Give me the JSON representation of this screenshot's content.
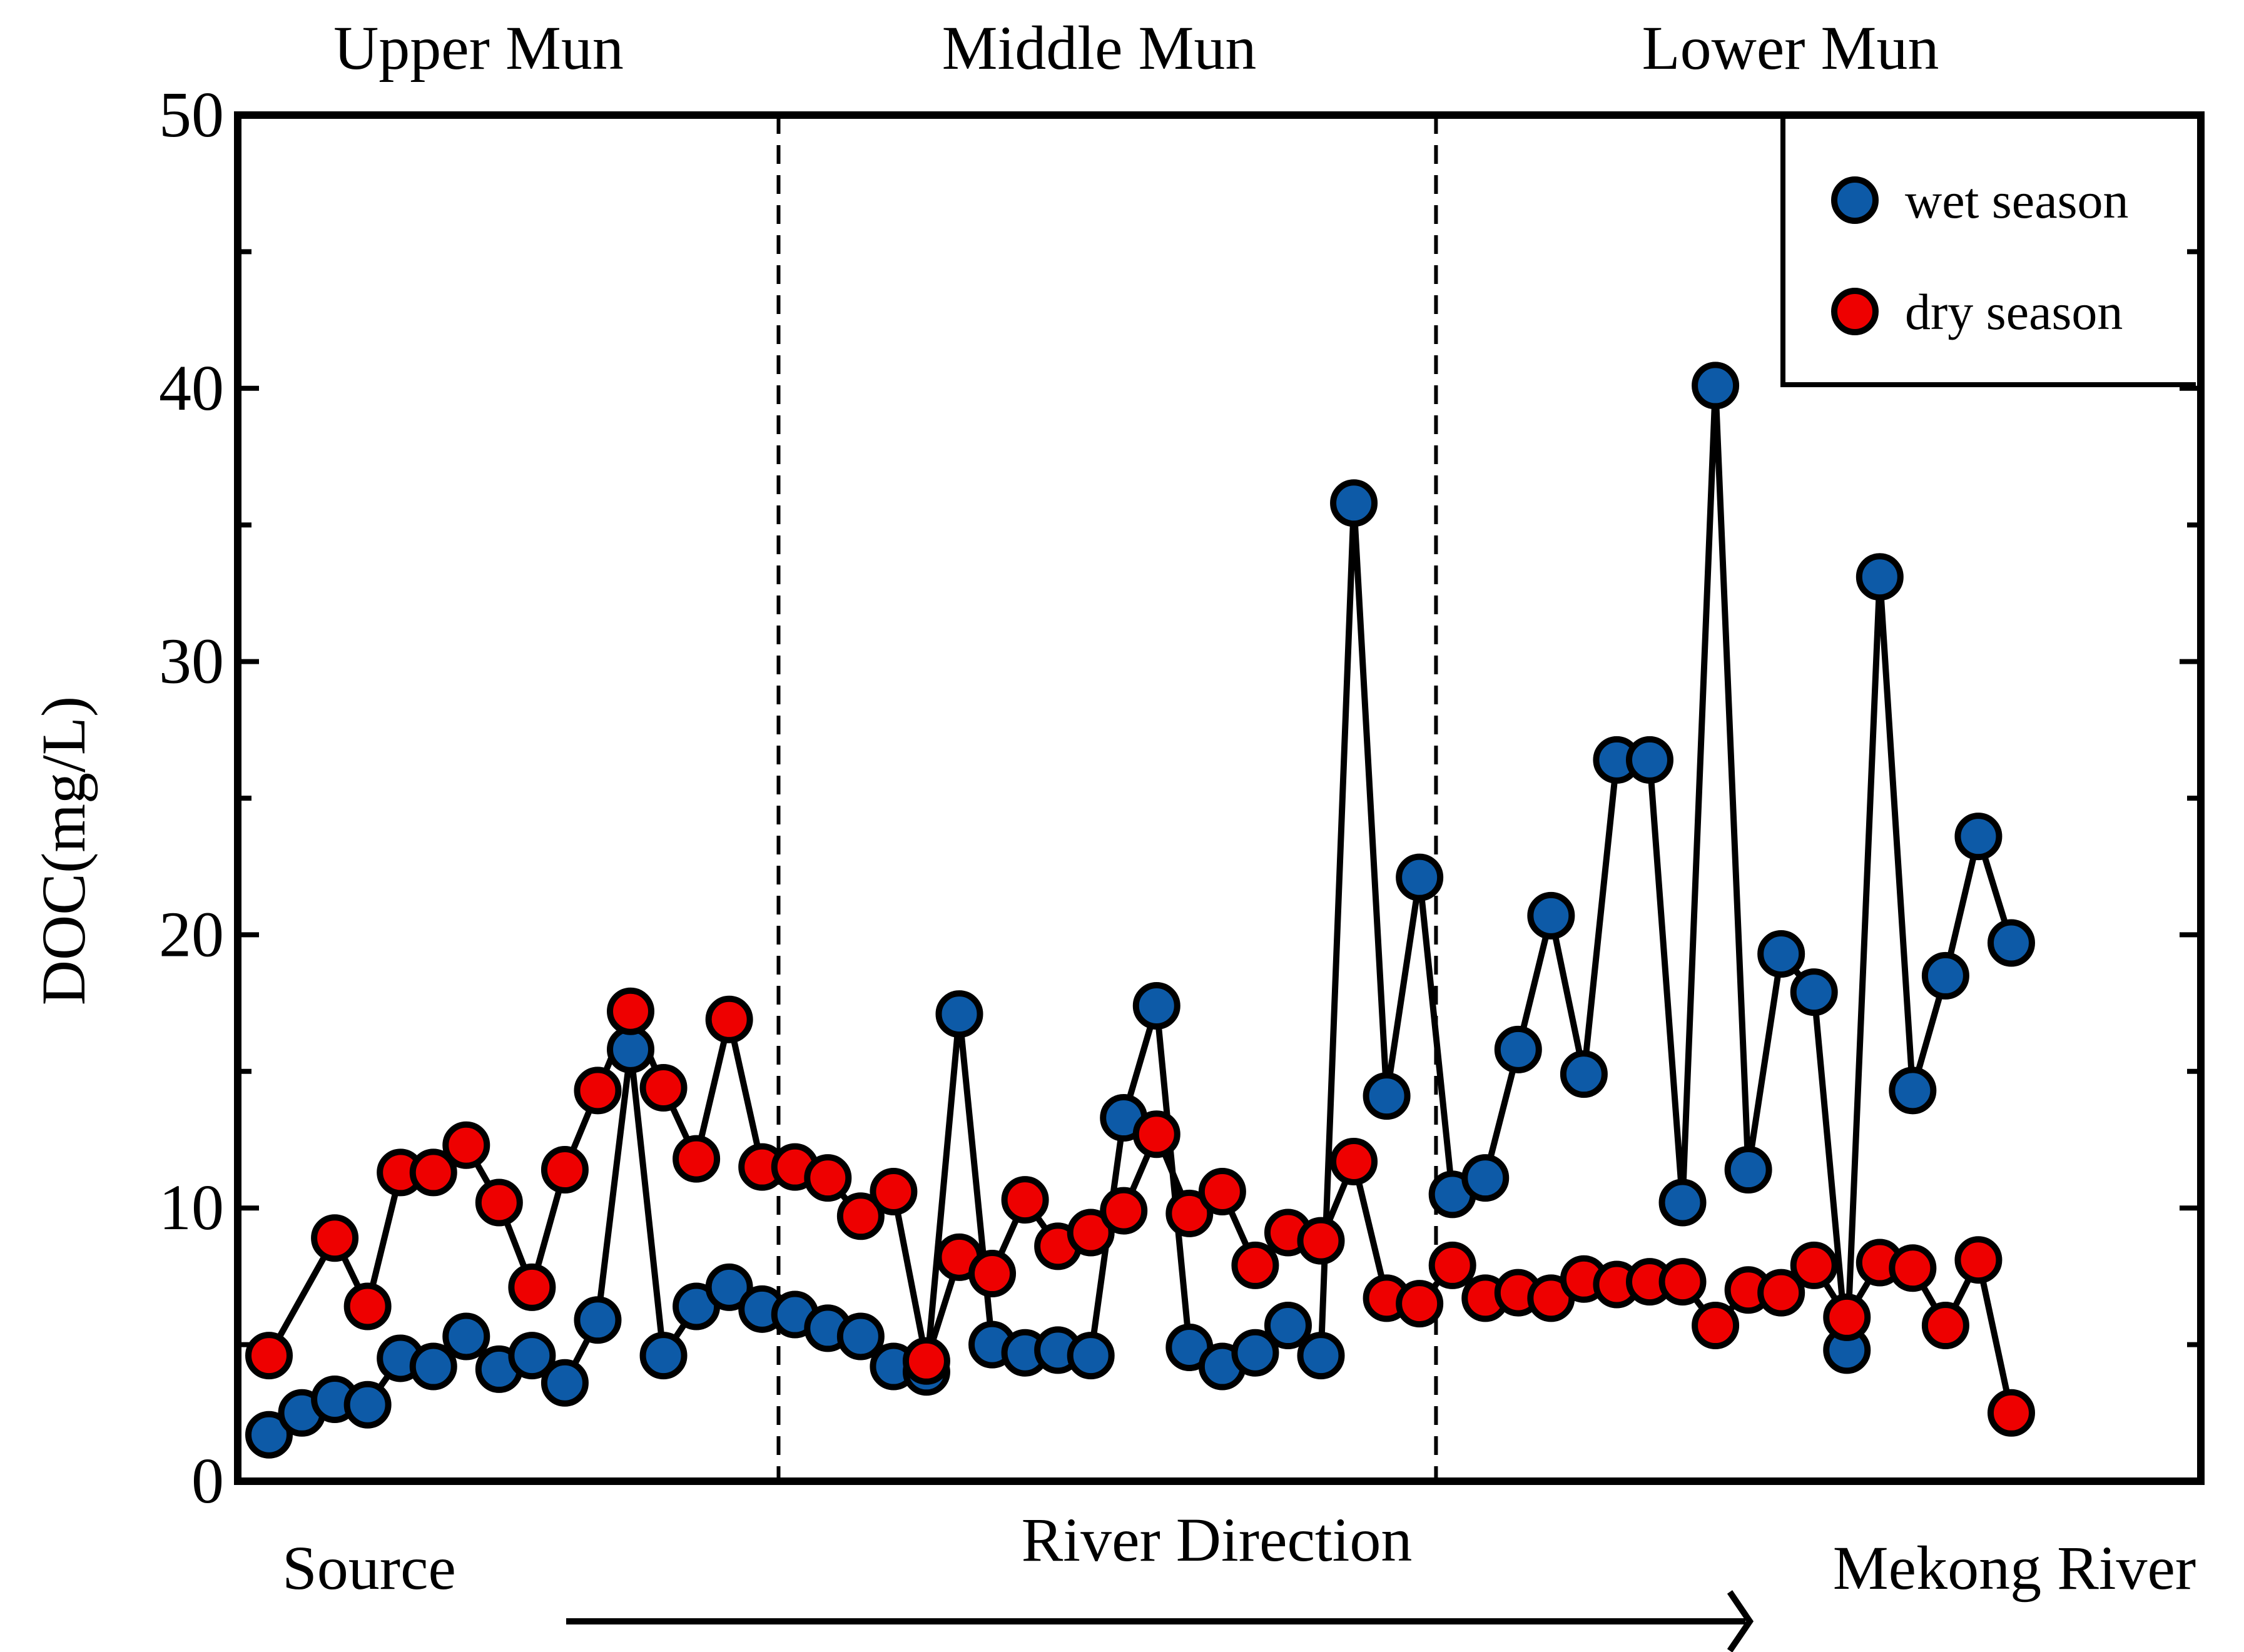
{
  "chart_data": {
    "type": "line",
    "title": "",
    "xlabel": "River Direction",
    "ylabel": "DOC(mg/L)",
    "ylim": [
      0,
      50
    ],
    "yticks": [
      0,
      10,
      20,
      30,
      40,
      50
    ],
    "grid": false,
    "legend_position": "top-right",
    "regions": [
      {
        "name": "Upper Mun"
      },
      {
        "name": "Middle Mun"
      },
      {
        "name": "Lower Mun"
      }
    ],
    "region_boundaries_after_station": [
      15.5,
      35.5
    ],
    "start_label": "Source",
    "end_label": "Mekong River",
    "series": [
      {
        "name": "wet season",
        "color": "#0d5aa7",
        "values": [
          1.7,
          2.5,
          3.0,
          2.8,
          4.5,
          4.2,
          5.3,
          4.1,
          4.6,
          3.6,
          5.9,
          15.8,
          4.6,
          6.4,
          7.1,
          6.3,
          6.1,
          5.6,
          5.3,
          4.2,
          4.0,
          17.1,
          5.0,
          4.7,
          4.8,
          4.6,
          13.3,
          17.4,
          4.9,
          4.2,
          4.7,
          5.7,
          4.6,
          35.8,
          14.1,
          22.1,
          10.5,
          11.1,
          15.8,
          20.7,
          14.9,
          26.4,
          26.4,
          10.2,
          40.1,
          11.4,
          19.3,
          17.9,
          4.8,
          33.1,
          14.3,
          18.5,
          23.6,
          19.7
        ]
      },
      {
        "name": "dry season",
        "color": "#ee0000",
        "values": [
          4.6,
          null,
          8.9,
          6.4,
          11.3,
          11.3,
          12.3,
          10.2,
          7.1,
          11.4,
          14.3,
          17.2,
          14.4,
          11.8,
          16.9,
          11.5,
          11.5,
          11.1,
          9.7,
          10.6,
          4.4,
          8.2,
          7.6,
          10.3,
          8.6,
          9.1,
          9.9,
          12.7,
          9.8,
          10.6,
          7.9,
          9.1,
          8.8,
          11.7,
          6.7,
          6.5,
          7.9,
          6.7,
          6.9,
          6.7,
          7.4,
          7.2,
          7.3,
          7.3,
          5.7,
          7.0,
          6.9,
          7.9,
          6.0,
          8.0,
          7.8,
          5.7,
          8.1,
          2.5
        ]
      }
    ]
  }
}
